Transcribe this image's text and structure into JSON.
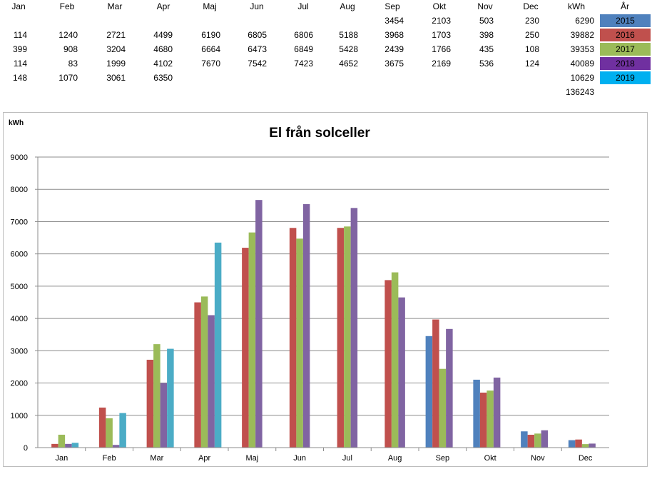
{
  "table": {
    "months": [
      "Jan",
      "Feb",
      "Mar",
      "Apr",
      "Maj",
      "Jun",
      "Jul",
      "Aug",
      "Sep",
      "Okt",
      "Nov",
      "Dec"
    ],
    "kwh_label": "kWh",
    "year_label": "År",
    "rows": [
      {
        "year": "2015",
        "color": "#4f81bd",
        "values": [
          "",
          "",
          "",
          "",
          "",
          "",
          "",
          "",
          "3454",
          "2103",
          "503",
          "230"
        ],
        "total": "6290"
      },
      {
        "year": "2016",
        "color": "#c0504d",
        "values": [
          "114",
          "1240",
          "2721",
          "4499",
          "6190",
          "6805",
          "6806",
          "5188",
          "3968",
          "1703",
          "398",
          "250"
        ],
        "total": "39882"
      },
      {
        "year": "2017",
        "color": "#9bbb59",
        "values": [
          "399",
          "908",
          "3204",
          "4680",
          "6664",
          "6473",
          "6849",
          "5428",
          "2439",
          "1766",
          "435",
          "108"
        ],
        "total": "39353"
      },
      {
        "year": "2018",
        "color": "#7030a0",
        "values": [
          "114",
          "83",
          "1999",
          "4102",
          "7670",
          "7542",
          "7423",
          "4652",
          "3675",
          "2169",
          "536",
          "124"
        ],
        "total": "40089"
      },
      {
        "year": "2019",
        "color": "#00b0f0",
        "values": [
          "148",
          "1070",
          "3061",
          "6350",
          "",
          "",
          "",
          "",
          "",
          "",
          "",
          ""
        ],
        "total": "10629"
      }
    ],
    "grand_total": "136243"
  },
  "chart_data": {
    "type": "bar",
    "title": "El från solceller",
    "ylabel": "kWh",
    "xlabel": "",
    "ylim": [
      0,
      9000
    ],
    "yticks": [
      0,
      1000,
      2000,
      3000,
      4000,
      5000,
      6000,
      7000,
      8000,
      9000
    ],
    "grid": true,
    "legend": "none",
    "categories": [
      "Jan",
      "Feb",
      "Mar",
      "Apr",
      "Maj",
      "Jun",
      "Jul",
      "Aug",
      "Sep",
      "Okt",
      "Nov",
      "Dec"
    ],
    "series": [
      {
        "color": "#4f81bd",
        "values": [
          null,
          null,
          null,
          null,
          null,
          null,
          null,
          null,
          3454,
          2103,
          503,
          230
        ]
      },
      {
        "color": "#c0504d",
        "values": [
          114,
          1240,
          2721,
          4499,
          6190,
          6805,
          6806,
          5188,
          3968,
          1703,
          398,
          250
        ]
      },
      {
        "color": "#9bbb59",
        "values": [
          399,
          908,
          3204,
          4680,
          6664,
          6473,
          6849,
          5428,
          2439,
          1766,
          435,
          108
        ]
      },
      {
        "color": "#8064a2",
        "values": [
          114,
          83,
          1999,
          4102,
          7670,
          7542,
          7423,
          4652,
          3675,
          2169,
          536,
          124
        ]
      },
      {
        "color": "#4bacc6",
        "values": [
          148,
          1070,
          3061,
          6350,
          null,
          null,
          null,
          null,
          null,
          null,
          null,
          null
        ]
      }
    ]
  }
}
